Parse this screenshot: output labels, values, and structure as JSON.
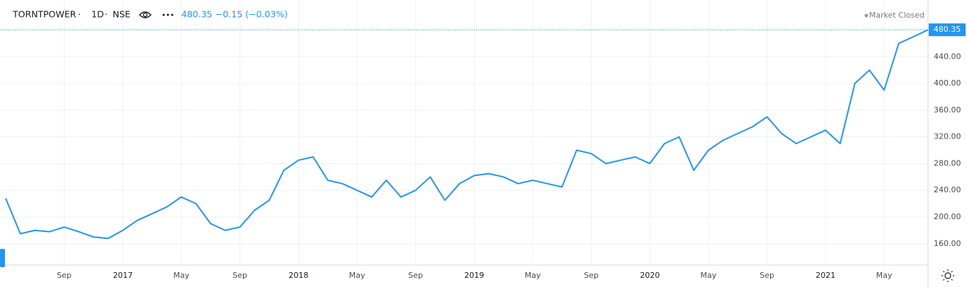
{
  "header": {
    "symbol": "TORNTPOWER",
    "interval": "1D",
    "exchange": "NSE",
    "change": "−0.15 (−0.03%)",
    "status": "Market Closed"
  },
  "chart_data": {
    "type": "line",
    "color": "#2196f3",
    "grid": true,
    "x": [
      "2016-05",
      "2016-06",
      "2016-07",
      "2016-08",
      "2016-09",
      "2016-10",
      "2016-11",
      "2016-12",
      "2017-01",
      "2017-02",
      "2017-03",
      "2017-04",
      "2017-05",
      "2017-06",
      "2017-07",
      "2017-08",
      "2017-09",
      "2017-10",
      "2017-11",
      "2017-12",
      "2018-01",
      "2018-02",
      "2018-03",
      "2018-04",
      "2018-05",
      "2018-06",
      "2018-07",
      "2018-08",
      "2018-09",
      "2018-10",
      "2018-11",
      "2018-12",
      "2019-01",
      "2019-02",
      "2019-03",
      "2019-04",
      "2019-05",
      "2019-06",
      "2019-07",
      "2019-08",
      "2019-09",
      "2019-10",
      "2019-11",
      "2019-12",
      "2020-01",
      "2020-02",
      "2020-03",
      "2020-04",
      "2020-05",
      "2020-06",
      "2020-07",
      "2020-08",
      "2020-09",
      "2020-10",
      "2020-11",
      "2020-12",
      "2021-01",
      "2021-02",
      "2021-03",
      "2021-04",
      "2021-05",
      "2021-06",
      "2021-07",
      "2021-08"
    ],
    "values": [
      228,
      175,
      180,
      178,
      185,
      178,
      170,
      168,
      180,
      195,
      205,
      215,
      230,
      220,
      190,
      180,
      185,
      210,
      225,
      270,
      285,
      290,
      255,
      250,
      240,
      230,
      255,
      230,
      240,
      260,
      225,
      250,
      262,
      265,
      260,
      250,
      255,
      250,
      245,
      300,
      295,
      280,
      285,
      290,
      280,
      310,
      320,
      270,
      300,
      315,
      325,
      335,
      350,
      325,
      310,
      320,
      330,
      310,
      400,
      420,
      390,
      460,
      470,
      480.35
    ],
    "xlim": [
      "2016-05",
      "2021-08"
    ],
    "xticks": [
      {
        "value": "2016-09",
        "label": "Sep"
      },
      {
        "value": "2017-01",
        "label": "2017"
      },
      {
        "value": "2017-05",
        "label": "May"
      },
      {
        "value": "2017-09",
        "label": "Sep"
      },
      {
        "value": "2018-01",
        "label": "2018"
      },
      {
        "value": "2018-05",
        "label": "May"
      },
      {
        "value": "2018-09",
        "label": "Sep"
      },
      {
        "value": "2019-01",
        "label": "2019"
      },
      {
        "value": "2019-05",
        "label": "May"
      },
      {
        "value": "2019-09",
        "label": "Sep"
      },
      {
        "value": "2020-01",
        "label": "2020"
      },
      {
        "value": "2020-05",
        "label": "May"
      },
      {
        "value": "2020-09",
        "label": "Sep"
      },
      {
        "value": "2021-01",
        "label": "2021"
      },
      {
        "value": "2021-05",
        "label": "May"
      }
    ],
    "ylim": [
      128,
      525
    ],
    "yticks": [
      {
        "value": 160,
        "label": "160.00"
      },
      {
        "value": 200,
        "label": "200.00"
      },
      {
        "value": 240,
        "label": "240.00"
      },
      {
        "value": 280,
        "label": "280.00"
      },
      {
        "value": 320,
        "label": "320.00"
      },
      {
        "value": 360,
        "label": "360.00"
      },
      {
        "value": 400,
        "label": "400.00"
      },
      {
        "value": 440,
        "label": "440.00"
      },
      {
        "value": 480,
        "label": "480.00"
      }
    ]
  }
}
